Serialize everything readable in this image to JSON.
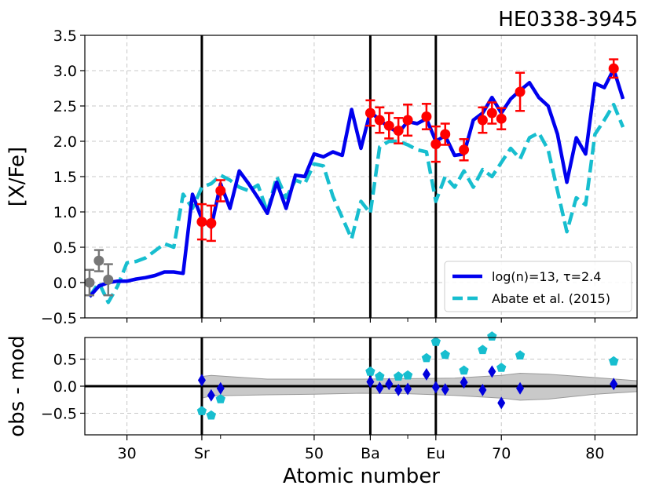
{
  "chart_data": [
    {
      "type": "line",
      "panel": "top",
      "title": "HE0338-3945",
      "xlabel": "",
      "ylabel": "[X/Fe]",
      "xlim": [
        25.5,
        84.5
      ],
      "ylim": [
        -0.5,
        3.5
      ],
      "yticks": [
        "−0.5",
        "0.0",
        "0.5",
        "1.0",
        "1.5",
        "2.0",
        "2.5",
        "3.0",
        "3.5"
      ],
      "ytick_values": [
        -0.5,
        0,
        0.5,
        1,
        1.5,
        2,
        2.5,
        3,
        3.5
      ],
      "grid": true,
      "legend_position": "lower-right",
      "vertical_lines": [
        38,
        56,
        63
      ],
      "series": [
        {
          "name": "log(n)=13, τ=2.4",
          "color": "#0000ee",
          "style": "solid",
          "x": [
            26,
            27,
            28,
            29,
            30,
            31,
            32,
            33,
            34,
            35,
            36,
            37,
            38,
            39,
            40,
            41,
            42,
            43,
            44,
            45,
            46,
            47,
            48,
            49,
            50,
            51,
            52,
            53,
            54,
            55,
            56,
            57,
            58,
            59,
            60,
            61,
            62,
            63,
            64,
            65,
            66,
            67,
            68,
            69,
            70,
            71,
            72,
            73,
            74,
            75,
            76,
            77,
            78,
            79,
            80,
            81,
            82,
            83
          ],
          "y": [
            -0.2,
            -0.05,
            0.0,
            0.02,
            0.02,
            0.05,
            0.07,
            0.1,
            0.15,
            0.15,
            0.13,
            1.25,
            0.9,
            0.78,
            1.4,
            1.05,
            1.58,
            1.4,
            1.2,
            0.98,
            1.42,
            1.05,
            1.52,
            1.5,
            1.82,
            1.78,
            1.85,
            1.8,
            2.45,
            1.9,
            2.42,
            2.3,
            2.2,
            2.12,
            2.28,
            2.25,
            2.32,
            2.0,
            2.08,
            1.8,
            1.82,
            2.3,
            2.4,
            2.62,
            2.4,
            2.6,
            2.72,
            2.83,
            2.62,
            2.5,
            2.1,
            1.42,
            2.05,
            1.82,
            2.82,
            2.76,
            3.02,
            2.6
          ]
        },
        {
          "name": "Abate et al. (2015)",
          "color": "#17becf",
          "style": "dashed",
          "x": [
            26,
            27,
            28,
            29,
            30,
            31,
            32,
            33,
            34,
            35,
            36,
            37,
            38,
            39,
            40,
            41,
            42,
            43,
            44,
            45,
            46,
            47,
            48,
            49,
            50,
            51,
            52,
            53,
            54,
            55,
            56,
            57,
            58,
            59,
            60,
            61,
            62,
            63,
            64,
            65,
            66,
            67,
            68,
            69,
            70,
            71,
            72,
            73,
            74,
            75,
            76,
            77,
            78,
            79,
            80,
            81,
            82,
            83
          ],
          "y": [
            -0.2,
            0.0,
            -0.28,
            -0.05,
            0.28,
            0.3,
            0.35,
            0.45,
            0.55,
            0.5,
            1.25,
            1.05,
            1.35,
            1.4,
            1.52,
            1.45,
            1.35,
            1.3,
            1.38,
            1.0,
            1.5,
            1.2,
            1.45,
            1.4,
            1.68,
            1.65,
            1.22,
            0.92,
            0.62,
            1.15,
            0.98,
            1.92,
            2.0,
            2.0,
            1.95,
            1.88,
            1.85,
            1.15,
            1.5,
            1.35,
            1.58,
            1.35,
            1.6,
            1.5,
            1.7,
            1.9,
            1.75,
            2.05,
            2.12,
            1.88,
            1.3,
            0.72,
            1.2,
            1.1,
            2.1,
            2.3,
            2.52,
            2.2
          ]
        }
      ],
      "observations_red": {
        "color": "#ff0000",
        "points": [
          {
            "x": 38,
            "y": 0.86,
            "err": 0.25
          },
          {
            "x": 39,
            "y": 0.84,
            "err": 0.25
          },
          {
            "x": 40,
            "y": 1.3,
            "err": 0.15
          },
          {
            "x": 56,
            "y": 2.4,
            "err": 0.18
          },
          {
            "x": 57,
            "y": 2.3,
            "err": 0.18
          },
          {
            "x": 58,
            "y": 2.22,
            "err": 0.18
          },
          {
            "x": 59,
            "y": 2.15,
            "err": 0.18
          },
          {
            "x": 60,
            "y": 2.3,
            "err": 0.22
          },
          {
            "x": 62,
            "y": 2.35,
            "err": 0.18
          },
          {
            "x": 63,
            "y": 1.96,
            "err": 0.25
          },
          {
            "x": 64,
            "y": 2.1,
            "err": 0.15
          },
          {
            "x": 66,
            "y": 1.88,
            "err": 0.15
          },
          {
            "x": 68,
            "y": 2.3,
            "err": 0.18
          },
          {
            "x": 69,
            "y": 2.4,
            "err": 0.15
          },
          {
            "x": 70,
            "y": 2.32,
            "err": 0.15
          },
          {
            "x": 72,
            "y": 2.7,
            "err": 0.27
          },
          {
            "x": 82,
            "y": 3.03,
            "err": 0.13
          }
        ]
      },
      "observations_gray": {
        "color": "#777777",
        "points": [
          {
            "x": 26,
            "y": 0.0,
            "err": 0.18
          },
          {
            "x": 27,
            "y": 0.31,
            "err": 0.15
          },
          {
            "x": 28,
            "y": 0.04,
            "err": 0.22
          }
        ]
      }
    },
    {
      "type": "scatter",
      "panel": "bottom",
      "xlabel": "Atomic number",
      "ylabel": "obs - mod",
      "xlim": [
        25.5,
        84.5
      ],
      "ylim": [
        -0.9,
        0.9
      ],
      "yticks": [
        "−0.5",
        "0.0",
        "0.5"
      ],
      "ytick_values": [
        -0.5,
        0,
        0.5
      ],
      "xticks": [
        {
          "x": 30,
          "label": "30"
        },
        {
          "x": 38,
          "label": "Sr"
        },
        {
          "x": 50,
          "label": "50"
        },
        {
          "x": 56,
          "label": "Ba"
        },
        {
          "x": 63,
          "label": "Eu"
        },
        {
          "x": 70,
          "label": "70"
        },
        {
          "x": 80,
          "label": "80"
        }
      ],
      "minor_xticks": [
        40,
        60
      ],
      "grid": true,
      "vertical_lines": [
        38,
        56,
        63
      ],
      "band": {
        "color": "#bbbbbb",
        "x": [
          38,
          39,
          45,
          50,
          55,
          60,
          65,
          70,
          72,
          75,
          80,
          84.5
        ],
        "upper": [
          0.18,
          0.2,
          0.13,
          0.13,
          0.13,
          0.14,
          0.15,
          0.2,
          0.24,
          0.22,
          0.16,
          0.1
        ],
        "lower": [
          -0.22,
          -0.18,
          -0.16,
          -0.15,
          -0.13,
          -0.14,
          -0.17,
          -0.22,
          -0.26,
          -0.24,
          -0.15,
          -0.1
        ]
      },
      "series": [
        {
          "name": "",
          "color": "#0000dd",
          "marker": "diamond",
          "x": [
            38,
            39,
            40,
            56,
            57,
            58,
            59,
            60,
            62,
            63,
            64,
            66,
            68,
            69,
            70,
            72,
            82
          ],
          "y": [
            0.11,
            -0.17,
            -0.04,
            0.08,
            -0.03,
            0.04,
            -0.07,
            -0.05,
            0.22,
            -0.02,
            -0.06,
            0.07,
            -0.07,
            0.27,
            -0.31,
            -0.04,
            0.04
          ]
        },
        {
          "name": "",
          "color": "#17becf",
          "marker": "pentagon",
          "x": [
            38,
            39,
            40,
            56,
            57,
            59,
            60,
            62,
            63,
            64,
            66,
            68,
            69,
            70,
            72,
            82
          ],
          "y": [
            -0.46,
            -0.54,
            -0.24,
            0.27,
            0.18,
            0.18,
            0.2,
            0.52,
            0.82,
            0.58,
            0.29,
            0.67,
            0.92,
            0.34,
            0.57,
            0.46
          ]
        }
      ]
    }
  ]
}
